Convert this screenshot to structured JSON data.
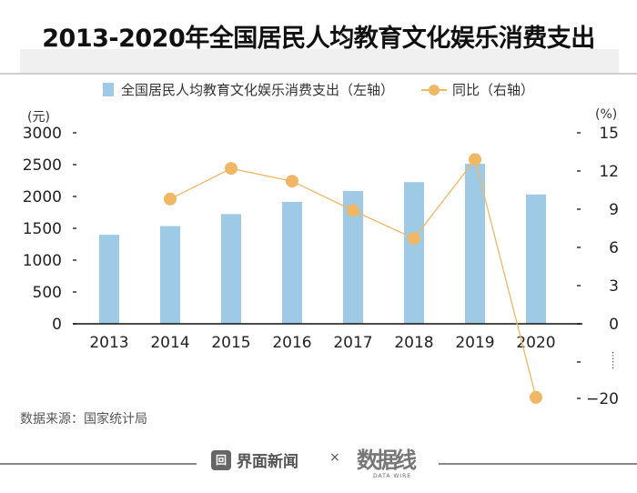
{
  "title": "2013-2020年全国居民人均教育文化娱乐消费支出",
  "legend": {
    "bar_label": "全国居民人均教育文化娱乐消费支出（左轴）",
    "line_label": "同比（右轴）"
  },
  "source": "数据来源：国家统计局",
  "footer": {
    "brand": "界面新闻",
    "times": "×",
    "partner": "数据线",
    "partner_sub": "DATA WIRE"
  },
  "chart_data": {
    "type": "bar+line",
    "title": "2013-2020年全国居民人均教育文化娱乐消费支出",
    "categories": [
      "2013",
      "2014",
      "2015",
      "2016",
      "2017",
      "2018",
      "2019",
      "2020"
    ],
    "series": [
      {
        "name": "全国居民人均教育文化娱乐消费支出（左轴）",
        "type": "bar",
        "axis": "left",
        "color": "#9ecae6",
        "values": [
          1398,
          1535,
          1723,
          1915,
          2086,
          2226,
          2513,
          2032
        ]
      },
      {
        "name": "同比（右轴）",
        "type": "line",
        "axis": "right",
        "color": "#f0b764",
        "values": [
          null,
          9.8,
          12.2,
          11.2,
          8.9,
          6.7,
          12.9,
          -19.1
        ]
      }
    ],
    "left_axis": {
      "unit": "(元)",
      "ticks": [
        "0",
        "500",
        "1000",
        "1500",
        "2000",
        "2500",
        "3000"
      ],
      "range": [
        0,
        3000
      ]
    },
    "right_axis": {
      "unit": "(%)",
      "ticks": [
        "15",
        "12",
        "9",
        "6",
        "3",
        "0",
        "-20"
      ],
      "range": [
        -20,
        15
      ],
      "break": "……"
    },
    "grid": false,
    "legend_position": "top"
  }
}
